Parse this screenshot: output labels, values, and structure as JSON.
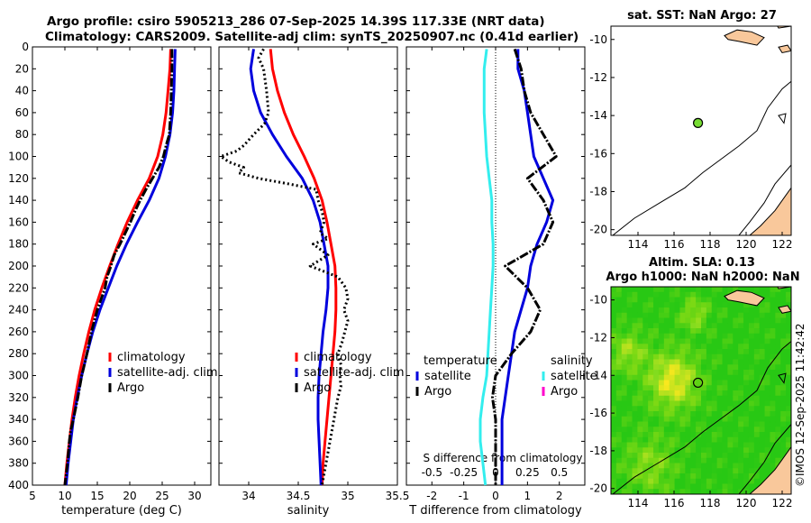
{
  "titles": {
    "line1": "Argo profile: csiro 5905213_286 07-Sep-2025 14.39S 117.33E (NRT data)",
    "line2": "Climatology: CARS2009. Satellite-adj clim: synTS_20250907.nc (0.41d earlier)"
  },
  "colors": {
    "climatology": "#ff0000",
    "satellite": "#0000dd",
    "argo": "#000000",
    "salinity_satellite": "#33eeee",
    "salinity_argo": "#ff00cc",
    "land": "#f9c89b",
    "float_marker": "#77dd33"
  },
  "chart_data": [
    {
      "type": "line",
      "name": "temperature-profile",
      "xlabel": "temperature (deg C)",
      "ylabel": "",
      "xlim": [
        5,
        32.5
      ],
      "ylim": [
        0,
        400
      ],
      "xticks": [
        "5",
        "10",
        "15",
        "20",
        "25",
        "30"
      ],
      "xtick_values": [
        5,
        10,
        15,
        20,
        25,
        30
      ],
      "yticks": [
        "0",
        "20",
        "40",
        "60",
        "80",
        "100",
        "120",
        "140",
        "160",
        "180",
        "200",
        "220",
        "240",
        "260",
        "280",
        "300",
        "320",
        "340",
        "360",
        "380",
        "400"
      ],
      "ytick_values": [
        0,
        20,
        40,
        60,
        80,
        100,
        120,
        140,
        160,
        180,
        200,
        220,
        240,
        260,
        280,
        300,
        320,
        340,
        360,
        380,
        400
      ],
      "legend": [
        "climatology",
        "satellite-adj. clim",
        "Argo"
      ],
      "series": [
        {
          "name": "climatology",
          "depth": [
            2,
            20,
            40,
            60,
            80,
            100,
            120,
            140,
            160,
            180,
            200,
            220,
            240,
            260,
            280,
            300,
            320,
            340,
            360,
            380,
            400
          ],
          "values": [
            26.3,
            26.2,
            25.9,
            25.6,
            25.1,
            24.3,
            23.0,
            21.2,
            19.6,
            18.2,
            16.9,
            15.7,
            14.6,
            13.7,
            12.9,
            12.2,
            11.6,
            11.1,
            10.7,
            10.3,
            10.0
          ]
        },
        {
          "name": "satellite-adj. clim",
          "depth": [
            2,
            20,
            40,
            60,
            80,
            100,
            120,
            140,
            160,
            180,
            200,
            220,
            240,
            260,
            280,
            300,
            320,
            340,
            360,
            380,
            400
          ],
          "values": [
            27.0,
            26.9,
            26.8,
            26.6,
            26.2,
            25.5,
            24.5,
            23.0,
            21.2,
            19.5,
            18.0,
            16.7,
            15.4,
            14.3,
            13.4,
            12.6,
            11.9,
            11.3,
            10.9,
            10.5,
            10.2
          ]
        },
        {
          "name": "Argo",
          "depth": [
            2,
            20,
            40,
            60,
            80,
            90,
            100,
            110,
            120,
            130,
            140,
            150,
            160,
            170,
            180,
            190,
            200,
            210,
            220,
            240,
            260,
            280,
            300,
            320,
            340,
            350,
            360,
            380,
            400
          ],
          "values": [
            26.5,
            26.5,
            26.4,
            26.3,
            26.1,
            25.6,
            25.2,
            24.5,
            23.5,
            22.5,
            21.6,
            20.8,
            20.1,
            19.3,
            18.5,
            17.6,
            17.1,
            16.5,
            16.2,
            15.0,
            14.1,
            13.4,
            12.6,
            12.0,
            11.3,
            10.9,
            10.7,
            10.4,
            10.0
          ]
        }
      ]
    },
    {
      "type": "line",
      "name": "salinity-profile",
      "xlabel": "salinity",
      "xlim": [
        33.7,
        35.5
      ],
      "ylim": [
        0,
        400
      ],
      "xticks": [
        "34",
        "34.5",
        "35",
        "35.5"
      ],
      "xtick_values": [
        34,
        34.5,
        35,
        35.5
      ],
      "legend": [
        "climatology",
        "satellite-adj. clim",
        "Argo"
      ],
      "series": [
        {
          "name": "climatology",
          "depth": [
            2,
            20,
            40,
            60,
            80,
            100,
            120,
            140,
            160,
            180,
            200,
            220,
            240,
            260,
            280,
            300,
            320,
            340,
            360,
            380,
            400
          ],
          "values": [
            34.22,
            34.24,
            34.29,
            34.36,
            34.45,
            34.56,
            34.66,
            34.74,
            34.79,
            34.83,
            34.87,
            34.88,
            34.88,
            34.87,
            34.85,
            34.83,
            34.81,
            34.79,
            34.77,
            34.75,
            34.74
          ]
        },
        {
          "name": "satellite-adj. clim",
          "depth": [
            2,
            20,
            40,
            60,
            80,
            100,
            120,
            140,
            160,
            180,
            200,
            220,
            240,
            260,
            280,
            300,
            320,
            340,
            360,
            380,
            400
          ],
          "values": [
            34.05,
            34.02,
            34.05,
            34.12,
            34.24,
            34.38,
            34.54,
            34.65,
            34.72,
            34.76,
            34.8,
            34.8,
            34.78,
            34.75,
            34.73,
            34.71,
            34.7,
            34.7,
            34.71,
            34.72,
            34.73
          ]
        },
        {
          "name": "Argo",
          "depth": [
            2,
            10,
            20,
            40,
            60,
            70,
            80,
            90,
            95,
            100,
            105,
            110,
            115,
            120,
            125,
            130,
            140,
            150,
            160,
            170,
            175,
            180,
            190,
            200,
            210,
            220,
            230,
            240,
            250,
            260,
            270,
            280,
            290,
            300,
            310,
            320,
            330,
            340,
            350,
            360,
            370,
            380,
            390,
            400
          ],
          "values": [
            34.15,
            34.1,
            34.15,
            34.18,
            34.2,
            34.16,
            34.05,
            33.95,
            33.88,
            33.72,
            33.8,
            33.95,
            33.9,
            34.1,
            34.4,
            34.68,
            34.7,
            34.74,
            34.76,
            34.72,
            34.8,
            34.65,
            34.8,
            34.62,
            34.9,
            34.98,
            35.0,
            34.96,
            35.0,
            34.97,
            34.94,
            34.9,
            34.93,
            34.92,
            34.93,
            34.9,
            34.88,
            34.86,
            34.84,
            34.82,
            34.8,
            34.78,
            34.76,
            34.74
          ]
        }
      ]
    },
    {
      "type": "line",
      "name": "difference-profile",
      "xlabel": "T difference from climatology",
      "secondary_xlabel": "S difference from climatology",
      "xlim": [
        -2.8,
        2.8
      ],
      "ylim": [
        0,
        400
      ],
      "xticks": [
        "-2",
        "-1",
        "0",
        "1",
        "2"
      ],
      "xtick_values": [
        -2,
        -1,
        0,
        1,
        2
      ],
      "secondary_xticks": [
        "-0.5",
        "-0.25",
        "0",
        "0.25",
        "0.5"
      ],
      "secondary_xtick_values": [
        -0.5,
        -0.25,
        0,
        0.25,
        0.5
      ],
      "legend_headers": [
        "temperature",
        "salinity"
      ],
      "legend": [
        "satellite",
        "Argo",
        "satellite",
        "Argo"
      ],
      "series": [
        {
          "name": "temperature satellite",
          "depth": [
            2,
            20,
            40,
            60,
            80,
            100,
            120,
            140,
            160,
            180,
            200,
            220,
            240,
            260,
            280,
            300,
            320,
            340,
            360,
            380,
            400
          ],
          "values": [
            0.7,
            0.7,
            0.9,
            1.0,
            1.1,
            1.2,
            1.5,
            1.8,
            1.6,
            1.3,
            1.1,
            1.0,
            0.8,
            0.6,
            0.5,
            0.4,
            0.3,
            0.2,
            0.2,
            0.2,
            0.2
          ]
        },
        {
          "name": "temperature Argo",
          "depth": [
            2,
            20,
            40,
            60,
            80,
            90,
            100,
            120,
            140,
            160,
            180,
            200,
            220,
            240,
            260,
            280,
            300,
            320,
            340,
            360,
            380,
            400
          ],
          "values": [
            0.6,
            0.8,
            0.9,
            1.1,
            1.5,
            1.7,
            1.9,
            1.0,
            1.5,
            1.8,
            1.5,
            0.3,
            1.0,
            1.4,
            1.1,
            0.5,
            0.0,
            -0.1,
            0.0,
            0.0,
            0.0,
            0.0
          ]
        },
        {
          "name": "salinity satellite",
          "depth": [
            2,
            20,
            40,
            60,
            80,
            100,
            120,
            140,
            160,
            180,
            200,
            220,
            240,
            260,
            280,
            300,
            320,
            340,
            360,
            380,
            400
          ],
          "values": [
            -0.07,
            -0.09,
            -0.09,
            -0.09,
            -0.08,
            -0.07,
            -0.05,
            -0.03,
            -0.03,
            -0.02,
            -0.02,
            -0.03,
            -0.04,
            -0.05,
            -0.06,
            -0.07,
            -0.1,
            -0.12,
            -0.12,
            -0.1,
            -0.08
          ]
        },
        {
          "name": "salinity Argo",
          "depth": [],
          "values": []
        }
      ]
    }
  ],
  "maps": {
    "sst": {
      "title": "sat. SST: NaN Argo: 27",
      "lon_ticks": [
        "114",
        "116",
        "118",
        "120",
        "122"
      ],
      "lat_ticks": [
        "-10",
        "-12",
        "-14",
        "-16",
        "-18",
        "-20"
      ],
      "lon_range": [
        112.5,
        122.5
      ],
      "lat_range": [
        -20.3,
        -9.3
      ],
      "float_lon": 117.33,
      "float_lat": -14.39
    },
    "sla": {
      "title_line1": "Altim. SLA: 0.13",
      "title_line2": "Argo h1000: NaN h2000: NaN",
      "lon_ticks": [
        "114",
        "116",
        "118",
        "120",
        "122"
      ],
      "lat_ticks": [
        "-10",
        "-12",
        "-14",
        "-16",
        "-18",
        "-20"
      ],
      "lon_range": [
        112.5,
        122.5
      ],
      "lat_range": [
        -20.3,
        -9.3
      ],
      "float_lon": 117.33,
      "float_lat": -14.39
    }
  },
  "stamp": "©IMOS 12-Sep-2025 11:42:42"
}
